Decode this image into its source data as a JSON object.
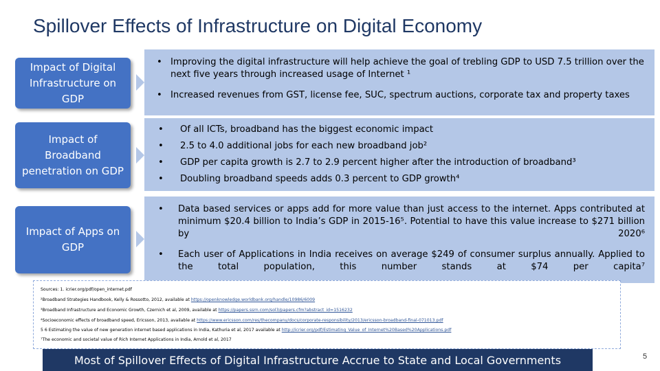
{
  "title": "Spillover Effects of Infrastructure on Digital Economy",
  "rows": [
    {
      "label": "Impact of Digital Infrastructure on GDP",
      "bullets": [
        "Improving the digital infrastructure will help achieve the goal of trebling GDP to USD 7.5 trillion over the next five years through increased usage of Internet ¹",
        "Increased revenues from GST, license fee, SUC, spectrum auctions, corporate tax and property taxes"
      ]
    },
    {
      "label": "Impact of Broadband penetration on GDP",
      "bullets": [
        "Of all ICTs, broadband has the biggest economic impact",
        "2.5 to 4.0 additional jobs for each new broadband job²",
        "GDP per capita growth is 2.7 to 2.9 percent higher after the introduction of broadband³",
        "Doubling broadband speeds adds 0.3 percent to GDP growth⁴"
      ]
    },
    {
      "label": "Impact of Apps on GDP",
      "bullets": [
        "Data based services or apps add for more value than just access to the internet. Apps contributed at minimum $20.4 billion to India’s GDP in 2015-16⁵. Potential to have this value increase to $271 billion by 2020⁶",
        "Each user of Applications in India receives on average $249 of consumer surplus annually. Applied to the total population, this number stands at $74 per capita⁷"
      ]
    }
  ],
  "sources": [
    {
      "text": "Sources: 1. icrier.org/pdf/open_internet.pdf",
      "link": ""
    },
    {
      "text": "²Broadband Strategies Handbook, Kelly & Rossotto, 2012, available at ",
      "link": "https://openknowledge.worldbank.org/handle/10986/6009"
    },
    {
      "text": "³Broadband Infrastructure and Economic Growth, Czernich et al, 2009, available at ",
      "link": "https://papers.ssrn.com/sol3/papers.cfm?abstract_id=1516232"
    },
    {
      "text": "⁴Socioeconomic effects of broadband speed, Ericsson, 2013, available at ",
      "link": "https://www.ericsson.com/res/thecompany/docs/corporate-responsibility/2013/ericsson-broadband-final-071013.pdf"
    },
    {
      "text": "5 6 Estimating the value of new generation internet based applications in India, Kathuria et al, 2017 available at ",
      "link": "http://icrier.org/pdf/Estimating_Value_of_Internet%20Based%20Applications.pdf"
    },
    {
      "text": "⁷The economic and societal value of Rich Internet Applications in India, Arnold et al, 2017",
      "link": ""
    }
  ],
  "banner": "Most of Spillover Effects of Digital Infrastructure Accrue to State and Local Governments",
  "page_number": "5",
  "colors": {
    "title": "#1f3864",
    "label_bg": "#4472c4",
    "content_bg": "#b4c7e7",
    "banner_bg": "#1f3864"
  }
}
